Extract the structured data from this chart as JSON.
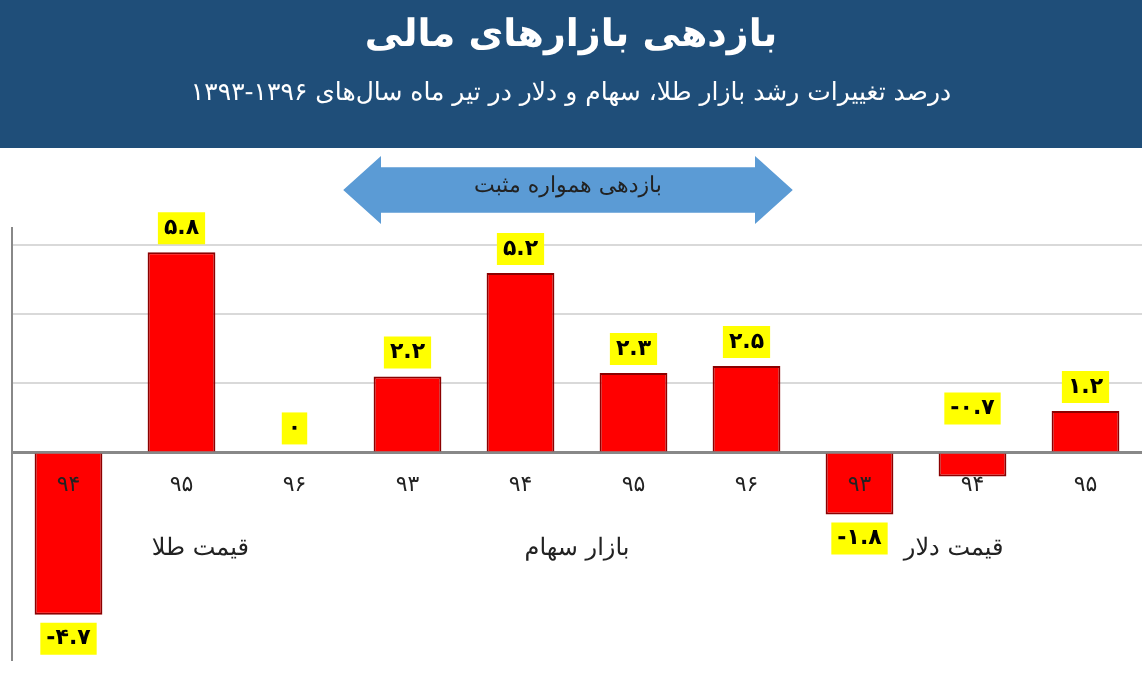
{
  "chart_data": {
    "type": "bar",
    "title": "بازدهی بازارهای مالی",
    "subtitle": "درصد تغییرات رشد بازار طلا، سهام و دلار در تیر ماه سال‌های ۱۳۹۶-۱۳۹۳",
    "categories": [
      "۹۴",
      "۹۵",
      "۹۶",
      "۹۳",
      "۹۴",
      "۹۵",
      "۹۶",
      "۹۳",
      "۹۴",
      "۹۵"
    ],
    "values": [
      -4.7,
      5.8,
      0,
      2.2,
      5.2,
      2.3,
      2.5,
      -1.8,
      -0.7,
      1.2
    ],
    "value_labels": [
      "-۴.۷",
      "۵.۸",
      "۰",
      "۲.۲",
      "۵.۲",
      "۲.۳",
      "۲.۵",
      "-۱.۸",
      "-۰.۷",
      "۱.۲"
    ],
    "color": "#ff0000",
    "ylim": [
      -6,
      6.5
    ],
    "yticks": [
      {
        "value": 0,
        "label": null
      },
      {
        "value": 2,
        "label": null
      },
      {
        "value": 4,
        "label": null
      },
      {
        "value": 6,
        "label": null
      }
    ],
    "grid": "y",
    "legend": false,
    "annotations": [
      "قیمت طلا",
      "بازار سهام",
      "قیمت دلار",
      "بازدهی همواره مثبت"
    ]
  }
}
